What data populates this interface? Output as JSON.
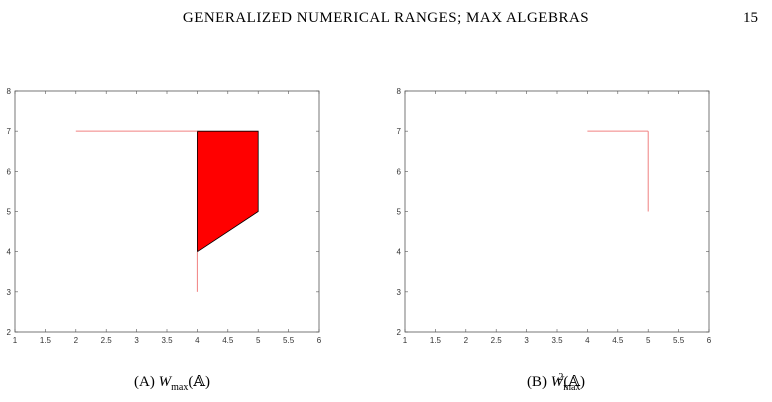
{
  "header": {
    "running_title": "GENERALIZED NUMERICAL RANGES; MAX ALGEBRAS",
    "page_number": "15"
  },
  "colors": {
    "fill": "#ff0000",
    "line": "#f08080",
    "axis": "#555555"
  },
  "chart_data": [
    {
      "type": "area",
      "xlim": [
        1,
        6
      ],
      "ylim": [
        2,
        8
      ],
      "xticks": [
        1,
        1.5,
        2,
        2.5,
        3,
        3.5,
        4,
        4.5,
        5,
        5.5,
        6
      ],
      "yticks": [
        2,
        3,
        4,
        5,
        6,
        7,
        8
      ],
      "polygon": [
        [
          4,
          4
        ],
        [
          5,
          5
        ],
        [
          5,
          7
        ],
        [
          4,
          7
        ]
      ],
      "segments": [
        [
          [
            2,
            7
          ],
          [
            4,
            7
          ]
        ],
        [
          [
            4,
            3
          ],
          [
            4,
            4
          ]
        ]
      ],
      "grid": false
    },
    {
      "type": "line",
      "xlim": [
        1,
        6
      ],
      "ylim": [
        2,
        8
      ],
      "xticks": [
        1,
        1.5,
        2,
        2.5,
        3,
        3.5,
        4,
        4.5,
        5,
        5.5,
        6
      ],
      "yticks": [
        2,
        3,
        4,
        5,
        6,
        7,
        8
      ],
      "segments": [
        [
          [
            4,
            7
          ],
          [
            5,
            7
          ]
        ],
        [
          [
            5,
            7
          ],
          [
            5,
            5
          ]
        ]
      ],
      "grid": false
    }
  ],
  "captions": {
    "a": {
      "label": "(A)",
      "base": "W",
      "sub": "max",
      "arg": "(𝔸)"
    },
    "b": {
      "label": "(B)",
      "base": "W",
      "sup": "2",
      "sub": "max",
      "arg": "(𝔸)"
    }
  }
}
